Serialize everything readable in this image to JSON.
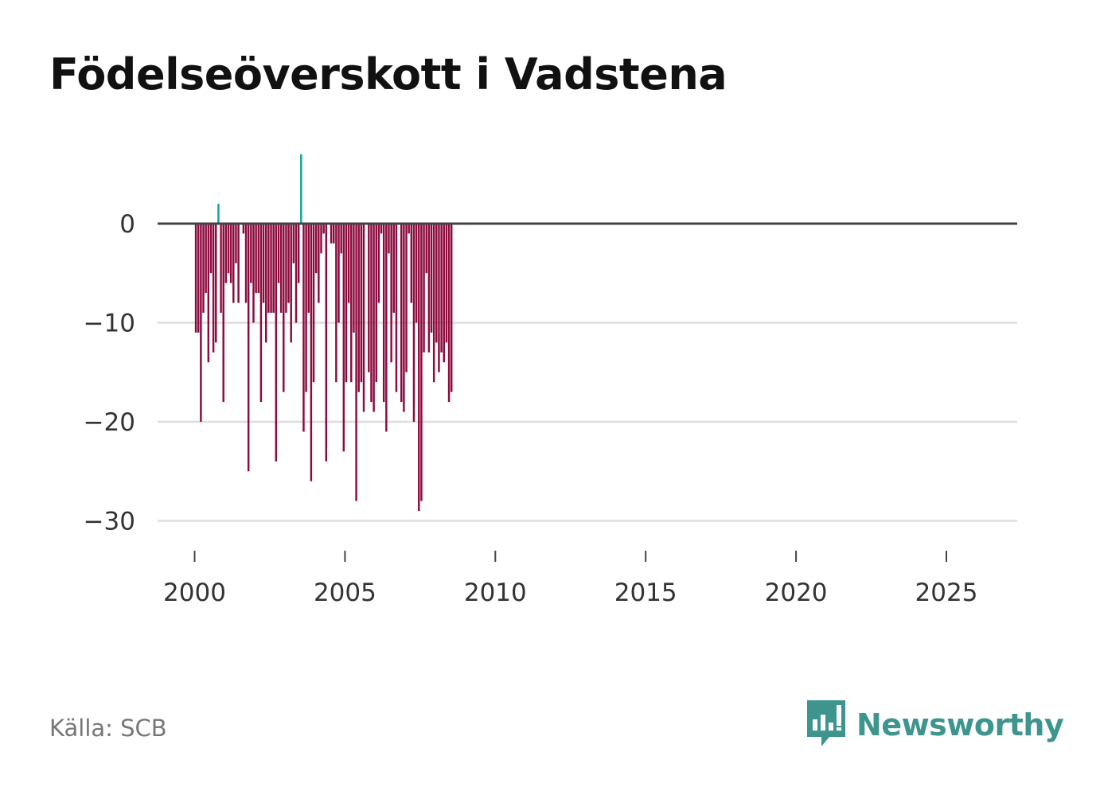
{
  "title": "Födelseöverskott i Vadstena",
  "source": "Källa: SCB",
  "brand": {
    "name": "Newsworthy",
    "icon": "newsworthy-logo-icon"
  },
  "colors": {
    "positive": "#12a29a",
    "negative": "#8d0a3e",
    "zero_line": "#444444",
    "grid": "#dddddd",
    "brand": "#3d958e"
  },
  "chart_data": {
    "type": "bar",
    "title": "Födelseöverskott i Vadstena",
    "xlabel": "",
    "ylabel": "",
    "ylim": [
      -33,
      8
    ],
    "xlim": [
      1999.3,
      2027.4
    ],
    "yticks": [
      0,
      -10,
      -20,
      -30
    ],
    "ytick_labels": [
      "0",
      "−10",
      "−20",
      "−30"
    ],
    "xticks": [
      2000,
      2005,
      2010,
      2015,
      2020,
      2025
    ],
    "xtick_labels": [
      "2000",
      "2005",
      "2010",
      "2015",
      "2020",
      "2025"
    ],
    "grid": true,
    "start": {
      "year": 2000,
      "month": 1
    },
    "frequency": "monthly",
    "values": [
      -11,
      -11,
      -20,
      -9,
      -7,
      -14,
      -5,
      -13,
      -12,
      2,
      -9,
      -18,
      -6,
      -5,
      -6,
      -8,
      -4,
      -8,
      0,
      -1,
      -8,
      -25,
      -6,
      -10,
      -7,
      -7,
      -18,
      -8,
      -12,
      -9,
      -9,
      -9,
      -24,
      -6,
      -9,
      -17,
      -9,
      -8,
      -12,
      -4,
      -10,
      -6,
      7,
      -21,
      -17,
      -9,
      -26,
      -16,
      -5,
      -8,
      -3,
      -1,
      -24,
      0,
      -2,
      -2,
      -16,
      -10,
      -3,
      -23,
      -16,
      -8,
      -16,
      -11,
      -28,
      -17,
      -16,
      -19,
      0,
      -15,
      -18,
      -19,
      -16,
      -8,
      -1,
      -18,
      -21,
      -3,
      -14,
      -9,
      -17,
      0,
      -18,
      -19,
      -15,
      -1,
      -8,
      -20,
      -10,
      -29,
      -28,
      -13,
      -5,
      -13,
      -11,
      -16,
      -12,
      -15,
      -13,
      -14,
      -12,
      -18,
      -17
    ]
  }
}
